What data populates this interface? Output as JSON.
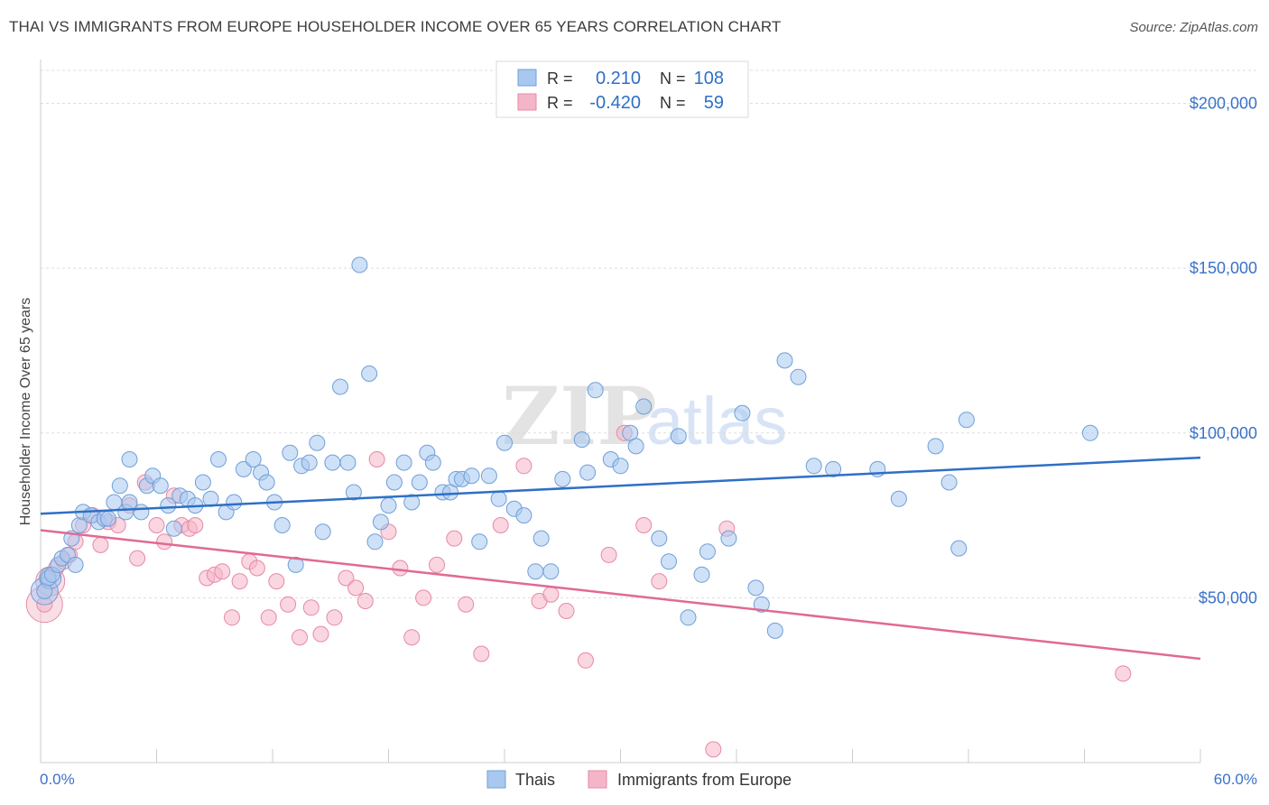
{
  "header": {
    "title": "THAI VS IMMIGRANTS FROM EUROPE HOUSEHOLDER INCOME OVER 65 YEARS CORRELATION CHART",
    "source": "Source: ZipAtlas.com"
  },
  "watermark": {
    "zip": "ZIP",
    "atlas": "atlas"
  },
  "colors": {
    "thais": "#a8c8f0",
    "thais_stroke": "#6f9fd8",
    "thais_line": "#2f6fc6",
    "europe": "#f5b5c8",
    "europe_stroke": "#e58aa6",
    "europe_line": "#e06a92",
    "axis_text": "#3a72c9",
    "grid": "#dddddd"
  },
  "legend": {
    "rows": [
      {
        "r_label": "R =",
        "r_value": "0.210",
        "n_label": "N =",
        "n_value": "108"
      },
      {
        "r_label": "R =",
        "r_value": "-0.420",
        "n_label": "N =",
        "n_value": "59"
      }
    ]
  },
  "bottom_legend": {
    "thais": "Thais",
    "europe": "Immigrants from Europe"
  },
  "chart_data": {
    "type": "scatter",
    "title": "THAI VS IMMIGRANTS FROM EUROPE HOUSEHOLDER INCOME OVER 65 YEARS CORRELATION CHART",
    "xlabel": "",
    "ylabel": "Householder Income Over 65 years",
    "xlim": [
      0,
      60
    ],
    "ylim": [
      0,
      210000
    ],
    "x_tick_labels": [
      "0.0%",
      "60.0%"
    ],
    "y_ticks": [
      50000,
      100000,
      150000,
      200000
    ],
    "y_tick_labels": [
      "$50,000",
      "$100,000",
      "$150,000",
      "$200,000"
    ],
    "grid": true,
    "legend_position": "top-center",
    "series": [
      {
        "name": "Thais",
        "trend": {
          "x": [
            0,
            60
          ],
          "y": [
            75500,
            92500
          ]
        },
        "points": [
          [
            0.2,
            52000
          ],
          [
            0.4,
            56000
          ],
          [
            0.6,
            57000
          ],
          [
            0.9,
            60000
          ],
          [
            1.1,
            62000
          ],
          [
            1.4,
            63000
          ],
          [
            1.6,
            68000
          ],
          [
            1.8,
            60000
          ],
          [
            2.0,
            72000
          ],
          [
            2.2,
            76000
          ],
          [
            2.6,
            75000
          ],
          [
            3.0,
            73000
          ],
          [
            3.3,
            74000
          ],
          [
            3.5,
            74000
          ],
          [
            3.8,
            79000
          ],
          [
            4.1,
            84000
          ],
          [
            4.4,
            76000
          ],
          [
            4.6,
            79000
          ],
          [
            4.6,
            92000
          ],
          [
            5.2,
            76000
          ],
          [
            5.5,
            84000
          ],
          [
            5.8,
            87000
          ],
          [
            6.2,
            84000
          ],
          [
            6.6,
            78000
          ],
          [
            6.9,
            71000
          ],
          [
            7.2,
            81000
          ],
          [
            7.6,
            80000
          ],
          [
            8.0,
            78000
          ],
          [
            8.4,
            85000
          ],
          [
            8.8,
            80000
          ],
          [
            9.2,
            92000
          ],
          [
            9.6,
            76000
          ],
          [
            10.0,
            79000
          ],
          [
            10.5,
            89000
          ],
          [
            11.0,
            92000
          ],
          [
            11.4,
            88000
          ],
          [
            11.7,
            85000
          ],
          [
            12.1,
            79000
          ],
          [
            12.5,
            72000
          ],
          [
            12.9,
            94000
          ],
          [
            13.2,
            60000
          ],
          [
            13.5,
            90000
          ],
          [
            13.9,
            91000
          ],
          [
            14.3,
            97000
          ],
          [
            14.6,
            70000
          ],
          [
            15.1,
            91000
          ],
          [
            15.5,
            114000
          ],
          [
            15.9,
            91000
          ],
          [
            16.2,
            82000
          ],
          [
            16.5,
            151000
          ],
          [
            17.0,
            118000
          ],
          [
            17.3,
            67000
          ],
          [
            17.6,
            73000
          ],
          [
            18.0,
            78000
          ],
          [
            18.3,
            85000
          ],
          [
            18.8,
            91000
          ],
          [
            19.2,
            79000
          ],
          [
            19.6,
            85000
          ],
          [
            20.0,
            94000
          ],
          [
            20.3,
            91000
          ],
          [
            20.8,
            82000
          ],
          [
            21.2,
            82000
          ],
          [
            21.5,
            86000
          ],
          [
            21.8,
            86000
          ],
          [
            22.3,
            87000
          ],
          [
            22.7,
            67000
          ],
          [
            23.2,
            87000
          ],
          [
            23.7,
            80000
          ],
          [
            24.0,
            97000
          ],
          [
            24.5,
            77000
          ],
          [
            25.0,
            75000
          ],
          [
            25.6,
            58000
          ],
          [
            25.9,
            68000
          ],
          [
            26.4,
            58000
          ],
          [
            27.0,
            86000
          ],
          [
            28.0,
            98000
          ],
          [
            28.3,
            88000
          ],
          [
            28.7,
            113000
          ],
          [
            29.5,
            92000
          ],
          [
            30.0,
            90000
          ],
          [
            30.5,
            100000
          ],
          [
            30.8,
            96000
          ],
          [
            31.2,
            108000
          ],
          [
            32.0,
            68000
          ],
          [
            32.5,
            61000
          ],
          [
            33.0,
            99000
          ],
          [
            33.5,
            44000
          ],
          [
            34.2,
            57000
          ],
          [
            34.5,
            64000
          ],
          [
            35.6,
            68000
          ],
          [
            36.3,
            106000
          ],
          [
            37.0,
            53000
          ],
          [
            37.3,
            48000
          ],
          [
            38.0,
            40000
          ],
          [
            38.5,
            122000
          ],
          [
            39.2,
            117000
          ],
          [
            40.0,
            90000
          ],
          [
            41.0,
            89000
          ],
          [
            43.3,
            89000
          ],
          [
            44.4,
            80000
          ],
          [
            46.3,
            96000
          ],
          [
            47.0,
            85000
          ],
          [
            47.5,
            65000
          ],
          [
            47.9,
            104000
          ],
          [
            54.3,
            100000
          ]
        ]
      },
      {
        "name": "Immigrants from Europe",
        "trend": {
          "x": [
            0,
            60
          ],
          "y": [
            70500,
            31500
          ]
        },
        "points": [
          [
            0.2,
            48000
          ],
          [
            0.4,
            55000
          ],
          [
            0.8,
            59000
          ],
          [
            1.2,
            61000
          ],
          [
            1.5,
            63000
          ],
          [
            1.8,
            67000
          ],
          [
            2.2,
            72000
          ],
          [
            2.7,
            75000
          ],
          [
            3.1,
            66000
          ],
          [
            3.5,
            73000
          ],
          [
            4.0,
            72000
          ],
          [
            4.6,
            78000
          ],
          [
            5.0,
            62000
          ],
          [
            5.4,
            85000
          ],
          [
            6.0,
            72000
          ],
          [
            6.4,
            67000
          ],
          [
            6.9,
            81000
          ],
          [
            7.3,
            72000
          ],
          [
            7.7,
            71000
          ],
          [
            8.0,
            72000
          ],
          [
            8.6,
            56000
          ],
          [
            9.0,
            57000
          ],
          [
            9.4,
            58000
          ],
          [
            9.9,
            44000
          ],
          [
            10.3,
            55000
          ],
          [
            10.8,
            61000
          ],
          [
            11.2,
            59000
          ],
          [
            11.8,
            44000
          ],
          [
            12.2,
            55000
          ],
          [
            12.8,
            48000
          ],
          [
            13.4,
            38000
          ],
          [
            14.0,
            47000
          ],
          [
            14.5,
            39000
          ],
          [
            15.2,
            44000
          ],
          [
            15.8,
            56000
          ],
          [
            16.3,
            53000
          ],
          [
            16.8,
            49000
          ],
          [
            17.4,
            92000
          ],
          [
            18.0,
            70000
          ],
          [
            18.6,
            59000
          ],
          [
            19.2,
            38000
          ],
          [
            19.8,
            50000
          ],
          [
            20.5,
            60000
          ],
          [
            21.4,
            68000
          ],
          [
            22.0,
            48000
          ],
          [
            22.8,
            33000
          ],
          [
            23.8,
            72000
          ],
          [
            25.0,
            90000
          ],
          [
            25.8,
            49000
          ],
          [
            26.4,
            51000
          ],
          [
            27.2,
            46000
          ],
          [
            28.2,
            31000
          ],
          [
            29.4,
            63000
          ],
          [
            30.2,
            100000
          ],
          [
            31.2,
            72000
          ],
          [
            32.0,
            55000
          ],
          [
            34.8,
            4000
          ],
          [
            35.5,
            71000
          ],
          [
            56.0,
            27000
          ]
        ]
      }
    ]
  }
}
